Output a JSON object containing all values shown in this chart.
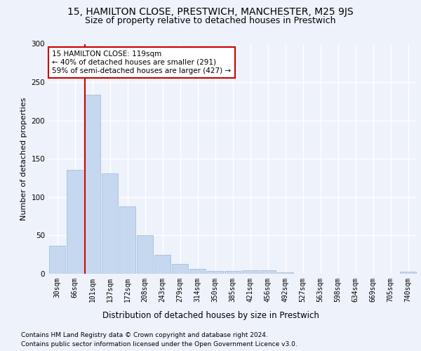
{
  "title1": "15, HAMILTON CLOSE, PRESTWICH, MANCHESTER, M25 9JS",
  "title2": "Size of property relative to detached houses in Prestwich",
  "xlabel": "Distribution of detached houses by size in Prestwich",
  "ylabel": "Number of detached properties",
  "footnote1": "Contains HM Land Registry data © Crown copyright and database right 2024.",
  "footnote2": "Contains public sector information licensed under the Open Government Licence v3.0.",
  "bar_labels": [
    "30sqm",
    "66sqm",
    "101sqm",
    "137sqm",
    "172sqm",
    "208sqm",
    "243sqm",
    "279sqm",
    "314sqm",
    "350sqm",
    "385sqm",
    "421sqm",
    "456sqm",
    "492sqm",
    "527sqm",
    "563sqm",
    "598sqm",
    "634sqm",
    "669sqm",
    "705sqm",
    "740sqm"
  ],
  "bar_values": [
    37,
    136,
    234,
    131,
    88,
    50,
    25,
    13,
    6,
    4,
    4,
    5,
    5,
    2,
    0,
    0,
    0,
    0,
    0,
    0,
    3
  ],
  "bar_color": "#c5d8f0",
  "bar_edgecolor": "#9ab8d8",
  "annotation_text": "15 HAMILTON CLOSE: 119sqm\n← 40% of detached houses are smaller (291)\n59% of semi-detached houses are larger (427) →",
  "vline_color": "#cc0000",
  "ylim": [
    0,
    300
  ],
  "yticks": [
    0,
    50,
    100,
    150,
    200,
    250,
    300
  ],
  "background_color": "#eef2fb",
  "plot_background": "#eef2fb",
  "grid_color": "#ffffff",
  "annotation_box_color": "#ffffff",
  "annotation_box_edgecolor": "#cc0000",
  "title1_fontsize": 10,
  "title2_fontsize": 9,
  "xlabel_fontsize": 8.5,
  "ylabel_fontsize": 8,
  "tick_fontsize": 7,
  "annotation_fontsize": 7.5,
  "footnote_fontsize": 6.5
}
